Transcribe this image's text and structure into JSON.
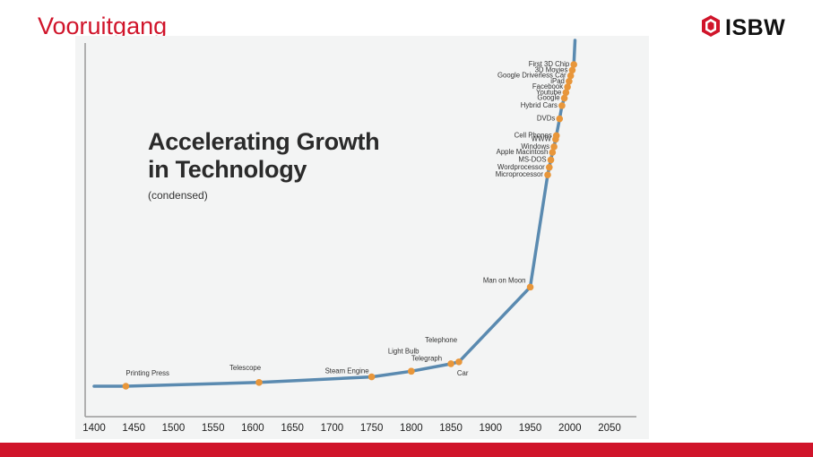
{
  "slide": {
    "title": "Vooruitgang",
    "logo_text": "ISBW"
  },
  "colors": {
    "accent": "#d0142a",
    "curve": "#5a8ab0",
    "marker": "#e8963a",
    "axis": "#9a9a9a",
    "background": "#f3f4f4"
  },
  "chart_data": {
    "type": "line",
    "title_line1": "Accelerating Growth",
    "title_line2": "in Technology",
    "subtitle": "(condensed)",
    "xlabel": "",
    "ylabel": "",
    "xlim": [
      1400,
      2050
    ],
    "x_ticks": [
      "1400",
      "1450",
      "1500",
      "1550",
      "1600",
      "1650",
      "1700",
      "1750",
      "1800",
      "1850",
      "1900",
      "1950",
      "2000",
      "2050"
    ],
    "y_axis": "relative growth (unlabeled)",
    "events": [
      {
        "label": "Printing Press",
        "year": 1440,
        "level": 0
      },
      {
        "label": "Telescope",
        "year": 1608,
        "level": 2
      },
      {
        "label": "Steam Engine",
        "year": 1750,
        "level": 5
      },
      {
        "label": "Telegraph",
        "year": 1800,
        "level": 8
      },
      {
        "label": "Light Bulb",
        "year": 1800,
        "level": 8
      },
      {
        "label": "Telephone",
        "year": 1850,
        "level": 12
      },
      {
        "label": "Car",
        "year": 1860,
        "level": 13
      },
      {
        "label": "Man on Moon",
        "year": 1950,
        "level": 53
      },
      {
        "label": "Microprocessor",
        "year": 1972,
        "level": 113
      },
      {
        "label": "Wordprocessor",
        "year": 1974,
        "level": 117
      },
      {
        "label": "MS-DOS",
        "year": 1976,
        "level": 121
      },
      {
        "label": "Apple Macintosh",
        "year": 1978,
        "level": 125
      },
      {
        "label": "Windows",
        "year": 1980,
        "level": 128
      },
      {
        "label": "WWW",
        "year": 1982,
        "level": 132
      },
      {
        "label": "Cell Phones",
        "year": 1983,
        "level": 134
      },
      {
        "label": "DVDs",
        "year": 1987,
        "level": 143
      },
      {
        "label": "Hybrid Cars",
        "year": 1990,
        "level": 150
      },
      {
        "label": "Google",
        "year": 1993,
        "level": 154
      },
      {
        "label": "Youtube",
        "year": 1995,
        "level": 157
      },
      {
        "label": "Facebook",
        "year": 1997,
        "level": 160
      },
      {
        "label": "iPad",
        "year": 1999,
        "level": 163
      },
      {
        "label": "Google Driverless Car",
        "year": 2001,
        "level": 166
      },
      {
        "label": "3D Movies",
        "year": 2003,
        "level": 169
      },
      {
        "label": "First 3D Chip",
        "year": 2005,
        "level": 172
      }
    ]
  }
}
